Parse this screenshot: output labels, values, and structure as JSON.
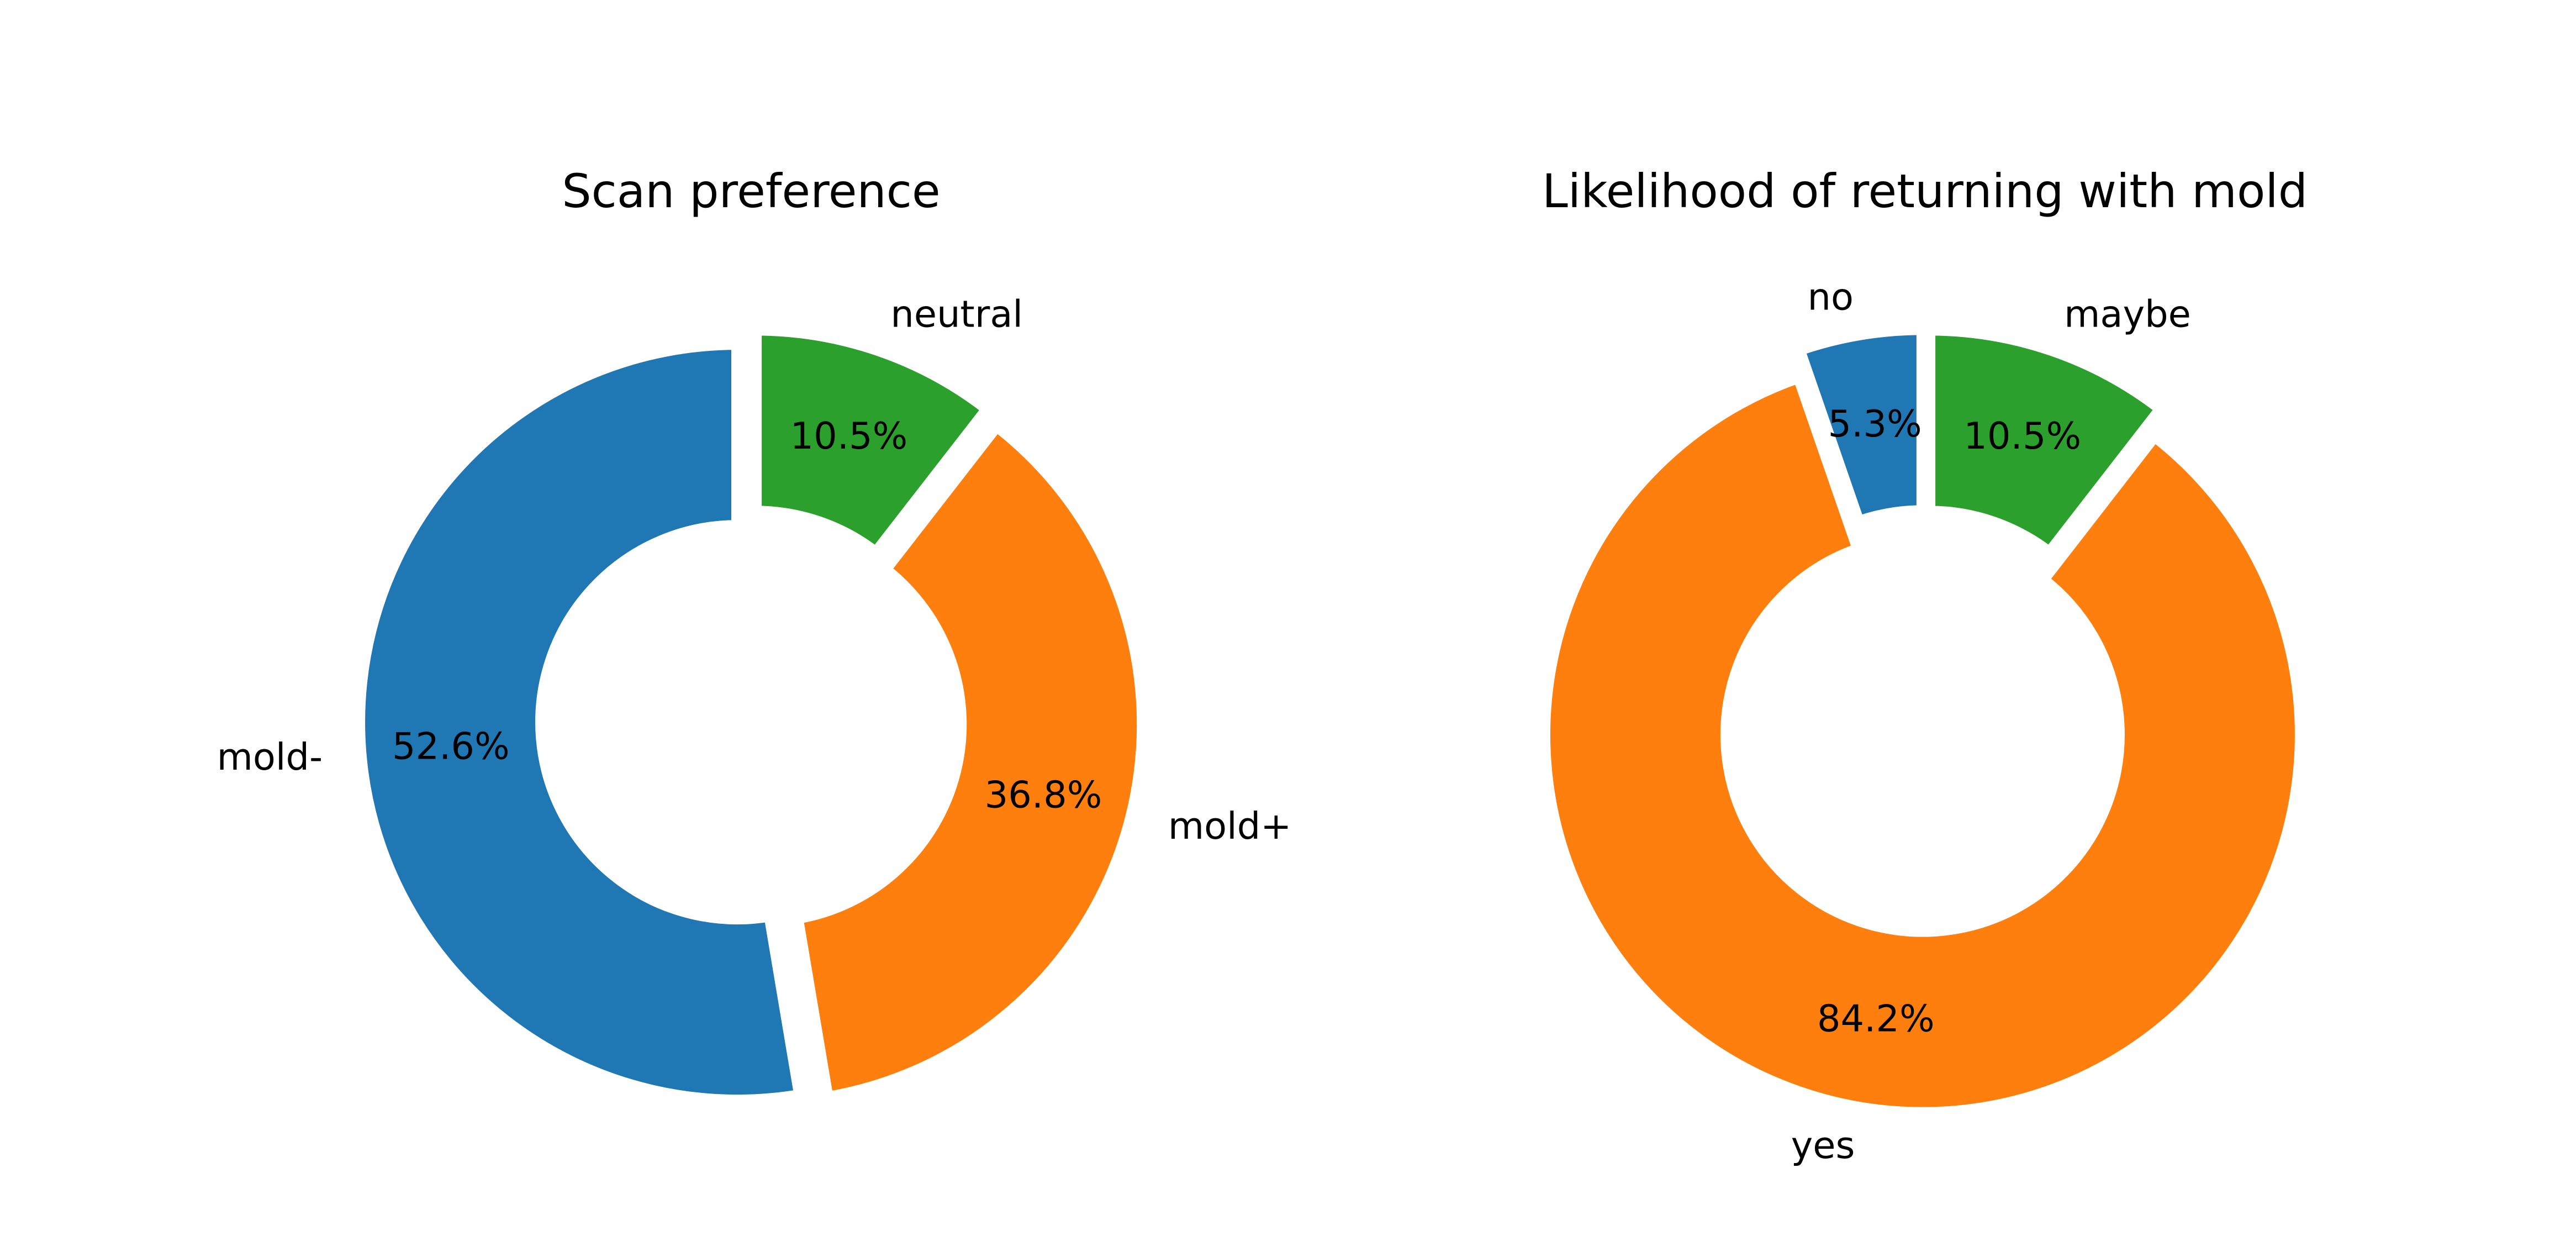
{
  "chart_data": [
    {
      "type": "pie",
      "style": "donut",
      "title": "Scan preference",
      "categories": [
        "mold-",
        "mold+",
        "neutral"
      ],
      "values": [
        52.6,
        36.8,
        10.5
      ],
      "value_labels": [
        "52.6%",
        "36.8%",
        "10.5%"
      ],
      "colors": [
        "#1f77b4",
        "#ff7f0e",
        "#2ca02c"
      ]
    },
    {
      "type": "pie",
      "style": "donut",
      "title": "Likelihood of returning with mold",
      "categories": [
        "no",
        "yes",
        "maybe"
      ],
      "values": [
        5.3,
        84.2,
        10.5
      ],
      "value_labels": [
        "5.3%",
        "84.2%",
        "10.5%"
      ],
      "colors": [
        "#1f77b4",
        "#ff7f0e",
        "#2ca02c"
      ]
    }
  ]
}
